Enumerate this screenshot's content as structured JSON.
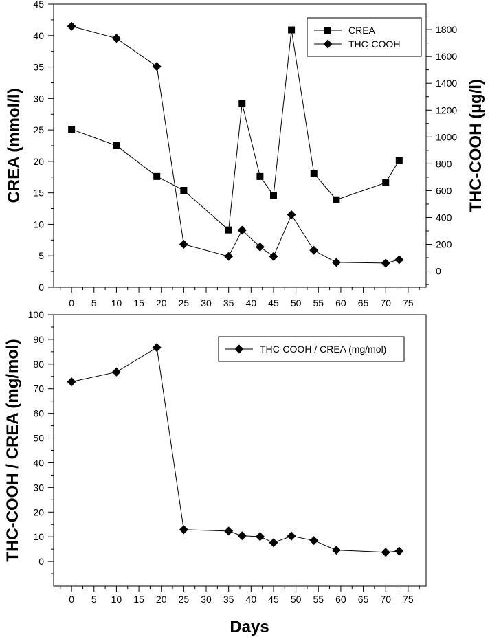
{
  "chart_data": [
    {
      "type": "line",
      "xlabel": "",
      "ylabel": "CREA (mmol/l)",
      "y2label": "THC-COOH (µg/l)",
      "xlim": [
        -4,
        79
      ],
      "ylim": [
        0,
        45
      ],
      "y2lim": [
        -120,
        1990
      ],
      "xticks": [
        0,
        5,
        10,
        15,
        20,
        25,
        30,
        35,
        40,
        45,
        50,
        55,
        60,
        65,
        70,
        75
      ],
      "yticks": [
        0,
        5,
        10,
        15,
        20,
        25,
        30,
        35,
        40,
        45
      ],
      "y2ticks": [
        0,
        200,
        400,
        600,
        800,
        1000,
        1200,
        1400,
        1600,
        1800
      ],
      "legend_position": "top-right",
      "series": [
        {
          "name": "CREA",
          "axis": "left",
          "marker": "square",
          "x": [
            0,
            10,
            19,
            25,
            35,
            38,
            42,
            45,
            49,
            54,
            59,
            70,
            73
          ],
          "y": [
            25.1,
            22.5,
            17.6,
            15.4,
            9.1,
            29.2,
            17.6,
            14.6,
            40.9,
            18.1,
            13.9,
            16.6,
            20.2
          ]
        },
        {
          "name": "THC-COOH",
          "axis": "right",
          "marker": "diamond",
          "x": [
            0,
            10,
            19,
            25,
            35,
            38,
            42,
            45,
            49,
            54,
            59,
            70,
            73
          ],
          "y": [
            1825,
            1735,
            1525,
            200,
            110,
            305,
            180,
            110,
            420,
            155,
            65,
            60,
            85
          ]
        }
      ]
    },
    {
      "type": "line",
      "xlabel": "Days",
      "ylabel": "THC-COOH / CREA (mg/mol)",
      "xlim": [
        -4,
        79
      ],
      "ylim": [
        -10,
        100
      ],
      "xticks": [
        0,
        5,
        10,
        15,
        20,
        25,
        30,
        35,
        40,
        45,
        50,
        55,
        60,
        65,
        70,
        75
      ],
      "yticks": [
        0,
        10,
        20,
        30,
        40,
        50,
        60,
        70,
        80,
        90,
        100
      ],
      "legend_position": "top-right",
      "series": [
        {
          "name": "THC-COOH / CREA (mg/mol)",
          "axis": "left",
          "marker": "diamond",
          "x": [
            0,
            10,
            19,
            25,
            35,
            38,
            42,
            45,
            49,
            54,
            59,
            70,
            73
          ],
          "y": [
            72.8,
            76.8,
            86.7,
            12.9,
            12.3,
            10.4,
            10.1,
            7.6,
            10.3,
            8.5,
            4.6,
            3.7,
            4.2
          ]
        }
      ]
    }
  ]
}
